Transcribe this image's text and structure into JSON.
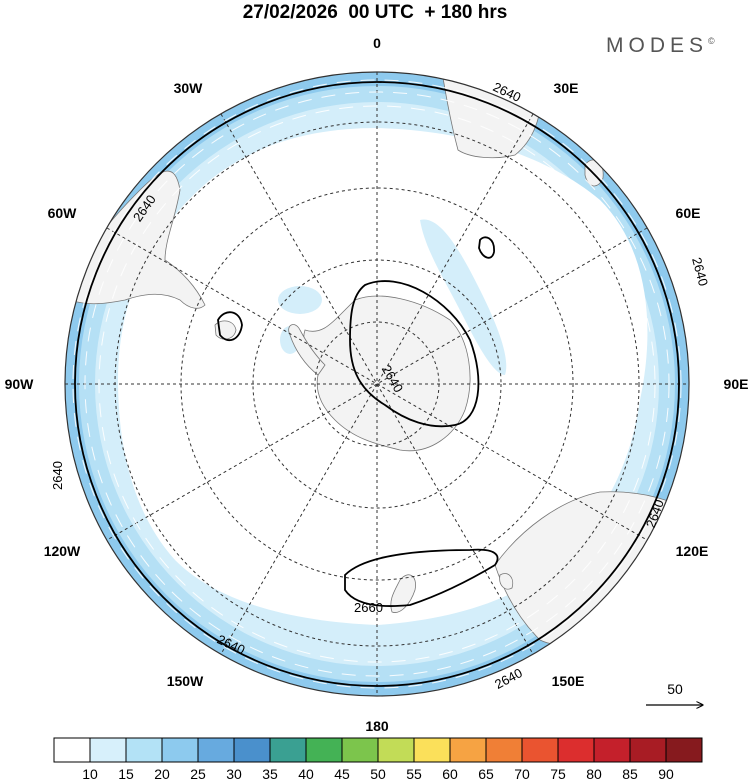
{
  "title": "27/02/2026  00 UTC  + 180 hrs",
  "brand": {
    "name": "MODES",
    "mark": "©"
  },
  "map": {
    "projection": "south polar stereographic",
    "longitude_labels": {
      "top": "0",
      "30e": "30E",
      "60e": "60E",
      "90e": "90E",
      "120e": "120E",
      "150e": "150E",
      "bottom": "180",
      "150w": "150W",
      "120w": "120W",
      "90w": "90W",
      "60w": "60W",
      "30w": "30W"
    },
    "contour_labels": {
      "outer_ne": "2640",
      "outer_nw": "2640",
      "outer_e": "2640",
      "outer_w": "2640",
      "outer_se": "2640",
      "outer_sw": "2640",
      "outer_sse": "2640",
      "pole": "2640",
      "tasman": "2660"
    },
    "vector_scale": "50"
  },
  "colorbar": {
    "labels": [
      "10",
      "15",
      "20",
      "25",
      "30",
      "35",
      "40",
      "45",
      "50",
      "55",
      "60",
      "65",
      "70",
      "75",
      "80",
      "85",
      "90"
    ],
    "colors": [
      "#ffffff",
      "#d7f0fb",
      "#b3e2f6",
      "#8dcaee",
      "#67aadf",
      "#4a90cc",
      "#3aa092",
      "#44b255",
      "#7cc54c",
      "#c2dc57",
      "#fbe05a",
      "#f6a343",
      "#f07f36",
      "#ea5430",
      "#dc2e2e",
      "#c4202b",
      "#a81c24",
      "#861a1e"
    ]
  },
  "colors": {
    "land": "#f3f3f3",
    "band_light": "#d9f0fb",
    "band_mid": "#b5e0f5",
    "band_dark": "#8ecaee"
  }
}
